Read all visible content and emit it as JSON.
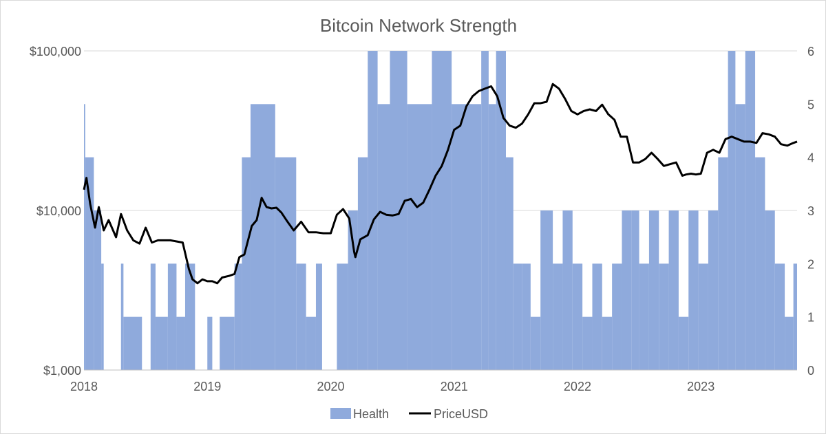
{
  "chart_data": {
    "type": "bar+line",
    "title": "Bitcoin Network Strength",
    "xlabel": "",
    "x_ticks": [
      "2018",
      "2019",
      "2020",
      "2021",
      "2022",
      "2023"
    ],
    "x_range": [
      2018.0,
      2023.78
    ],
    "left_axis": {
      "scale": "log",
      "ylim": [
        1000,
        100000
      ],
      "ticks": [
        1000,
        10000,
        100000
      ],
      "tick_labels": [
        "$1,000",
        "$10,000",
        "$100,000"
      ]
    },
    "right_axis": {
      "scale": "linear",
      "ylim": [
        0,
        6
      ],
      "ticks": [
        0,
        1,
        2,
        3,
        4,
        5,
        6
      ],
      "tick_labels": [
        "0",
        "1",
        "2",
        "3",
        "4",
        "5",
        "6"
      ]
    },
    "series": [
      {
        "name": "Health",
        "axis": "right",
        "type": "column",
        "color": "#8faadc",
        "segments": [
          [
            2018.0,
            2018.01,
            5
          ],
          [
            2018.01,
            2018.08,
            4
          ],
          [
            2018.08,
            2018.14,
            3
          ],
          [
            2018.14,
            2018.16,
            2
          ],
          [
            2018.16,
            2018.3,
            0
          ],
          [
            2018.3,
            2018.32,
            2
          ],
          [
            2018.32,
            2018.47,
            1
          ],
          [
            2018.47,
            2018.54,
            0
          ],
          [
            2018.54,
            2018.58,
            2
          ],
          [
            2018.58,
            2018.68,
            1
          ],
          [
            2018.68,
            2018.75,
            2
          ],
          [
            2018.75,
            2018.82,
            1
          ],
          [
            2018.82,
            2018.9,
            2
          ],
          [
            2018.9,
            2019.0,
            0
          ],
          [
            2019.0,
            2019.04,
            1
          ],
          [
            2019.04,
            2019.1,
            0
          ],
          [
            2019.1,
            2019.22,
            1
          ],
          [
            2019.22,
            2019.28,
            2
          ],
          [
            2019.28,
            2019.35,
            4
          ],
          [
            2019.35,
            2019.55,
            5
          ],
          [
            2019.55,
            2019.72,
            4
          ],
          [
            2019.72,
            2019.8,
            2
          ],
          [
            2019.8,
            2019.88,
            1
          ],
          [
            2019.88,
            2019.93,
            2
          ],
          [
            2019.93,
            2020.05,
            0
          ],
          [
            2020.05,
            2020.14,
            2
          ],
          [
            2020.14,
            2020.22,
            3
          ],
          [
            2020.22,
            2020.3,
            4
          ],
          [
            2020.3,
            2020.38,
            6
          ],
          [
            2020.38,
            2020.48,
            5
          ],
          [
            2020.48,
            2020.62,
            6
          ],
          [
            2020.62,
            2020.82,
            5
          ],
          [
            2020.82,
            2020.98,
            6
          ],
          [
            2020.98,
            2021.22,
            5
          ],
          [
            2021.22,
            2021.28,
            6
          ],
          [
            2021.28,
            2021.34,
            5
          ],
          [
            2021.34,
            2021.42,
            6
          ],
          [
            2021.42,
            2021.48,
            4
          ],
          [
            2021.48,
            2021.55,
            2
          ],
          [
            2021.55,
            2021.62,
            2
          ],
          [
            2021.62,
            2021.7,
            1
          ],
          [
            2021.7,
            2021.8,
            3
          ],
          [
            2021.8,
            2021.88,
            2
          ],
          [
            2021.88,
            2021.96,
            3
          ],
          [
            2021.96,
            2022.04,
            2
          ],
          [
            2022.04,
            2022.12,
            1
          ],
          [
            2022.12,
            2022.2,
            2
          ],
          [
            2022.2,
            2022.28,
            1
          ],
          [
            2022.28,
            2022.36,
            2
          ],
          [
            2022.36,
            2022.44,
            3
          ],
          [
            2022.44,
            2022.5,
            3
          ],
          [
            2022.5,
            2022.58,
            2
          ],
          [
            2022.58,
            2022.66,
            3
          ],
          [
            2022.66,
            2022.74,
            2
          ],
          [
            2022.74,
            2022.82,
            3
          ],
          [
            2022.82,
            2022.9,
            1
          ],
          [
            2022.9,
            2022.98,
            3
          ],
          [
            2022.98,
            2023.06,
            2
          ],
          [
            2023.06,
            2023.14,
            3
          ],
          [
            2023.14,
            2023.22,
            4
          ],
          [
            2023.22,
            2023.28,
            6
          ],
          [
            2023.28,
            2023.36,
            5
          ],
          [
            2023.36,
            2023.44,
            6
          ],
          [
            2023.44,
            2023.52,
            4
          ],
          [
            2023.52,
            2023.6,
            3
          ],
          [
            2023.6,
            2023.68,
            2
          ],
          [
            2023.68,
            2023.75,
            1
          ],
          [
            2023.75,
            2023.78,
            2
          ]
        ]
      },
      {
        "name": "PriceUSD",
        "axis": "left",
        "type": "line",
        "color": "#000000",
        "x": [
          2018.0,
          2018.02,
          2018.05,
          2018.09,
          2018.12,
          2018.16,
          2018.2,
          2018.26,
          2018.3,
          2018.35,
          2018.4,
          2018.45,
          2018.5,
          2018.55,
          2018.6,
          2018.65,
          2018.7,
          2018.75,
          2018.8,
          2018.85,
          2018.88,
          2018.92,
          2018.96,
          2019.0,
          2019.04,
          2019.08,
          2019.12,
          2019.18,
          2019.22,
          2019.26,
          2019.3,
          2019.36,
          2019.4,
          2019.44,
          2019.48,
          2019.52,
          2019.56,
          2019.6,
          2019.65,
          2019.7,
          2019.76,
          2019.82,
          2019.88,
          2019.94,
          2020.0,
          2020.05,
          2020.1,
          2020.15,
          2020.19,
          2020.2,
          2020.24,
          2020.3,
          2020.35,
          2020.4,
          2020.45,
          2020.5,
          2020.55,
          2020.6,
          2020.65,
          2020.7,
          2020.75,
          2020.8,
          2020.85,
          2020.9,
          2020.95,
          2021.0,
          2021.05,
          2021.1,
          2021.15,
          2021.2,
          2021.25,
          2021.3,
          2021.35,
          2021.4,
          2021.45,
          2021.5,
          2021.55,
          2021.6,
          2021.65,
          2021.7,
          2021.75,
          2021.8,
          2021.85,
          2021.9,
          2021.95,
          2022.0,
          2022.05,
          2022.1,
          2022.15,
          2022.2,
          2022.25,
          2022.3,
          2022.35,
          2022.4,
          2022.45,
          2022.5,
          2022.55,
          2022.6,
          2022.65,
          2022.7,
          2022.75,
          2022.8,
          2022.85,
          2022.88,
          2022.92,
          2022.96,
          2023.0,
          2023.05,
          2023.1,
          2023.15,
          2023.2,
          2023.25,
          2023.3,
          2023.35,
          2023.4,
          2023.45,
          2023.5,
          2023.55,
          2023.6,
          2023.65,
          2023.7,
          2023.75,
          2023.78
        ],
        "values": [
          13500,
          16000,
          11000,
          7800,
          10500,
          7500,
          8700,
          6800,
          9500,
          7500,
          6500,
          6200,
          7800,
          6300,
          6500,
          6500,
          6500,
          6400,
          6300,
          4300,
          3700,
          3500,
          3700,
          3600,
          3600,
          3500,
          3800,
          3900,
          4000,
          5100,
          5300,
          8000,
          8700,
          12000,
          10500,
          10300,
          10400,
          9700,
          8500,
          7500,
          8500,
          7300,
          7300,
          7200,
          7200,
          9400,
          10200,
          8900,
          5500,
          5100,
          6600,
          7000,
          8800,
          9800,
          9400,
          9300,
          9500,
          11500,
          11800,
          10500,
          11200,
          13500,
          16500,
          19000,
          24000,
          32000,
          34000,
          45000,
          52000,
          56000,
          58000,
          60000,
          52000,
          38000,
          34000,
          33000,
          35000,
          40000,
          47000,
          47000,
          48000,
          62000,
          58000,
          50000,
          42000,
          40000,
          42000,
          43000,
          42000,
          46000,
          40000,
          37000,
          29000,
          29000,
          20000,
          20000,
          21000,
          23000,
          21000,
          19000,
          19500,
          20000,
          16500,
          16800,
          17000,
          16800,
          17000,
          23000,
          24000,
          23000,
          28000,
          29000,
          28000,
          27000,
          27000,
          26500,
          30500,
          30000,
          29000,
          26000,
          25500,
          26500,
          27000
        ]
      }
    ],
    "legend": {
      "position": "bottom",
      "entries": [
        "Health",
        "PriceUSD"
      ]
    }
  }
}
